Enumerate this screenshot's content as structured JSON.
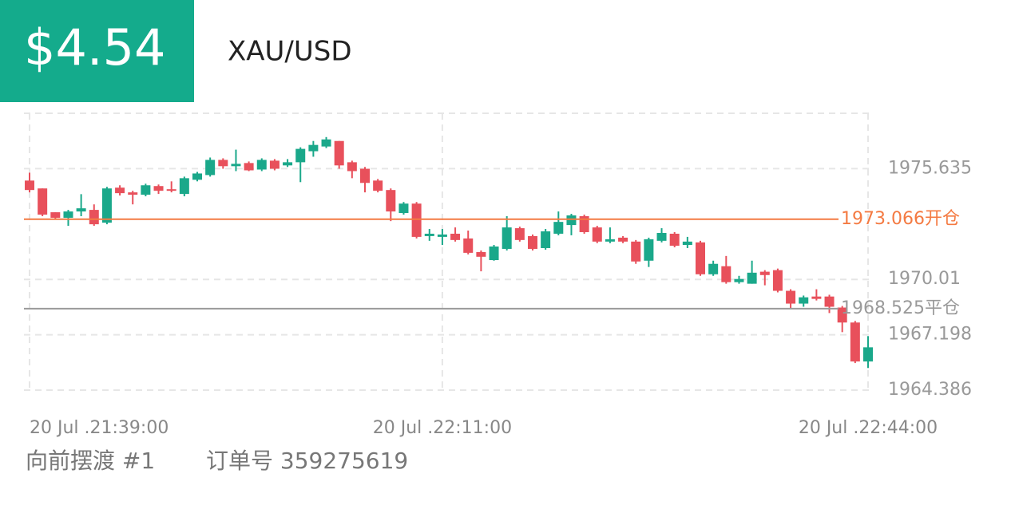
{
  "header": {
    "price": "$4.54",
    "symbol": "XAU/USD"
  },
  "chart_data": {
    "type": "candlestick",
    "categories": [
      "20 Jul .21:39:00",
      null,
      null,
      null,
      null,
      null,
      null,
      null,
      null,
      null,
      null,
      null,
      null,
      null,
      null,
      null,
      null,
      null,
      null,
      null,
      null,
      null,
      null,
      null,
      null,
      null,
      null,
      null,
      null,
      null,
      null,
      null,
      "20 Jul .22:11:00",
      null,
      null,
      null,
      null,
      null,
      null,
      null,
      null,
      null,
      null,
      null,
      null,
      null,
      null,
      null,
      null,
      null,
      null,
      null,
      null,
      null,
      null,
      null,
      null,
      null,
      null,
      null,
      null,
      null,
      null,
      null,
      null,
      "20 Jul .22:44:00"
    ],
    "open": [
      1975.03,
      1974.63,
      1973.42,
      1973.14,
      1973.46,
      1973.54,
      1972.89,
      1974.67,
      1974.43,
      1974.31,
      1974.75,
      1974.59,
      1974.35,
      1975.07,
      1975.31,
      1976.08,
      1975.76,
      1975.92,
      1975.59,
      1976.04,
      1975.8,
      1975.96,
      1976.52,
      1976.76,
      1977.04,
      1975.96,
      1975.63,
      1975.03,
      1974.55,
      1973.38,
      1973.86,
      1972.21,
      1972.17,
      1972.33,
      1972.09,
      1971.4,
      1970.99,
      1971.56,
      1972.61,
      1972.21,
      1971.6,
      1972.33,
      1972.77,
      1973.22,
      1972.65,
      1971.93,
      1972.13,
      1971.93,
      1970.96,
      1971.97,
      1972.33,
      1971.76,
      1971.89,
      1970.27,
      1970.68,
      1969.87,
      1969.79,
      1970.4,
      1970.48,
      1969.43,
      1968.78,
      1969.14,
      1969.14,
      1968.58,
      1967.82,
      1965.84
    ],
    "high": [
      1975.43,
      1974.63,
      1973.42,
      1973.54,
      1974.34,
      1973.82,
      1974.71,
      1974.79,
      1974.51,
      1974.87,
      1974.83,
      1974.99,
      1975.23,
      1975.47,
      1976.2,
      1976.16,
      1976.6,
      1976.0,
      1976.16,
      1976.12,
      1976.12,
      1976.72,
      1977.04,
      1977.24,
      1977.04,
      1976.04,
      1975.72,
      1975.11,
      1974.63,
      1973.94,
      1973.94,
      1972.57,
      1972.57,
      1972.65,
      1972.49,
      1971.48,
      1971.76,
      1973.22,
      1972.69,
      1972.29,
      1972.57,
      1973.46,
      1973.34,
      1973.3,
      1972.73,
      1972.65,
      1972.21,
      1972.01,
      1972.13,
      1972.61,
      1972.41,
      1972.17,
      1971.97,
      1970.96,
      1971.2,
      1970.19,
      1970.96,
      1970.48,
      1970.56,
      1969.51,
      1969.19,
      1969.51,
      1969.23,
      1968.66,
      1967.9,
      1967.13
    ],
    "low": [
      1974.43,
      1973.22,
      1973.1,
      1972.73,
      1973.22,
      1972.73,
      1972.81,
      1974.27,
      1973.82,
      1974.23,
      1974.35,
      1974.43,
      1974.23,
      1974.99,
      1975.23,
      1975.63,
      1975.51,
      1975.51,
      1975.51,
      1975.55,
      1975.72,
      1974.95,
      1976.24,
      1976.68,
      1975.63,
      1975.15,
      1974.43,
      1974.43,
      1972.97,
      1973.3,
      1972.09,
      1971.97,
      1971.76,
      1971.93,
      1971.28,
      1970.42,
      1970.96,
      1971.48,
      1971.93,
      1971.48,
      1971.52,
      1972.25,
      1972.25,
      1972.33,
      1971.85,
      1971.85,
      1971.85,
      1970.8,
      1970.64,
      1971.89,
      1971.64,
      1971.6,
      1970.19,
      1970.19,
      1969.79,
      1969.79,
      1969.79,
      1969.71,
      1969.35,
      1968.54,
      1968.62,
      1968.94,
      1968.3,
      1967.33,
      1965.76,
      1965.51
    ],
    "close": [
      1974.55,
      1973.3,
      1973.14,
      1973.46,
      1973.62,
      1972.81,
      1974.63,
      1974.39,
      1974.31,
      1974.79,
      1974.51,
      1974.51,
      1975.15,
      1975.39,
      1976.08,
      1975.76,
      1975.88,
      1975.55,
      1976.08,
      1975.63,
      1975.96,
      1976.64,
      1976.84,
      1977.12,
      1975.8,
      1975.51,
      1974.91,
      1974.51,
      1973.46,
      1973.86,
      1972.17,
      1972.33,
      1972.29,
      1972.01,
      1971.36,
      1971.16,
      1971.68,
      1972.65,
      1972.01,
      1971.56,
      1972.45,
      1972.93,
      1973.26,
      1972.41,
      1971.93,
      1972.05,
      1971.93,
      1970.92,
      1972.05,
      1972.37,
      1971.72,
      1971.93,
      1970.27,
      1970.8,
      1969.87,
      1970.03,
      1970.35,
      1970.23,
      1969.43,
      1968.78,
      1969.1,
      1969.02,
      1968.62,
      1967.82,
      1965.84,
      1966.56
    ],
    "up_color": "#1aa88a",
    "down_color": "#e8505b",
    "ylim": [
      1964.386,
      1978.447
    ],
    "yticks": [
      1975.635,
      1970.01,
      {
        "value": 1967.198,
        "label": "1967.198"
      },
      1964.386
    ],
    "price_lines": [
      {
        "value": 1973.066,
        "label": "1973.066开仓",
        "color": "#f47a42"
      },
      {
        "value": 1968.525,
        "label": "1968.525平仓",
        "color": "#9a9a9a"
      }
    ],
    "grid": true
  },
  "footer": {
    "name": "向前摆渡 #1",
    "order": "订单号 359275619"
  }
}
